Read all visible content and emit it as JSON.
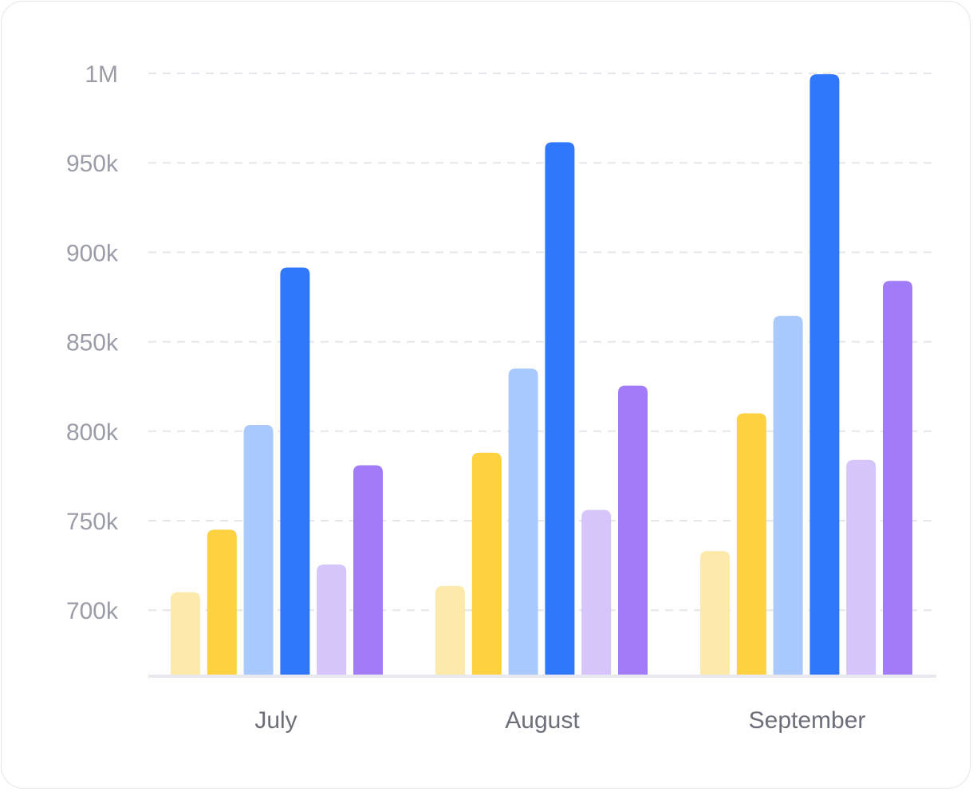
{
  "chart_data": {
    "type": "bar",
    "categories": [
      "July",
      "August",
      "September"
    ],
    "series": [
      {
        "color": "#fdeaaa",
        "values": [
          710000,
          713500,
          733000
        ]
      },
      {
        "color": "#fed140",
        "values": [
          745000,
          788000,
          810000
        ]
      },
      {
        "color": "#a9c8fc",
        "values": [
          803500,
          835000,
          864500
        ]
      },
      {
        "color": "#2f78fe",
        "values": [
          891500,
          961500,
          999500
        ]
      },
      {
        "color": "#d6c5fa",
        "values": [
          725500,
          756000,
          784000
        ]
      },
      {
        "color": "#a17bf8",
        "values": [
          781000,
          825500,
          884000
        ]
      }
    ],
    "y_ticks": [
      {
        "value": 700000,
        "label": "700k"
      },
      {
        "value": 750000,
        "label": "750k"
      },
      {
        "value": 800000,
        "label": "800k"
      },
      {
        "value": 850000,
        "label": "850k"
      },
      {
        "value": 900000,
        "label": "900k"
      },
      {
        "value": 950000,
        "label": "950k"
      },
      {
        "value": 1000000,
        "label": "1M"
      }
    ],
    "ylim": [
      664000,
      1000000
    ],
    "grid": true,
    "grid_style": "dashed",
    "legend": "none",
    "title": "",
    "xlabel": "",
    "ylabel": ""
  }
}
